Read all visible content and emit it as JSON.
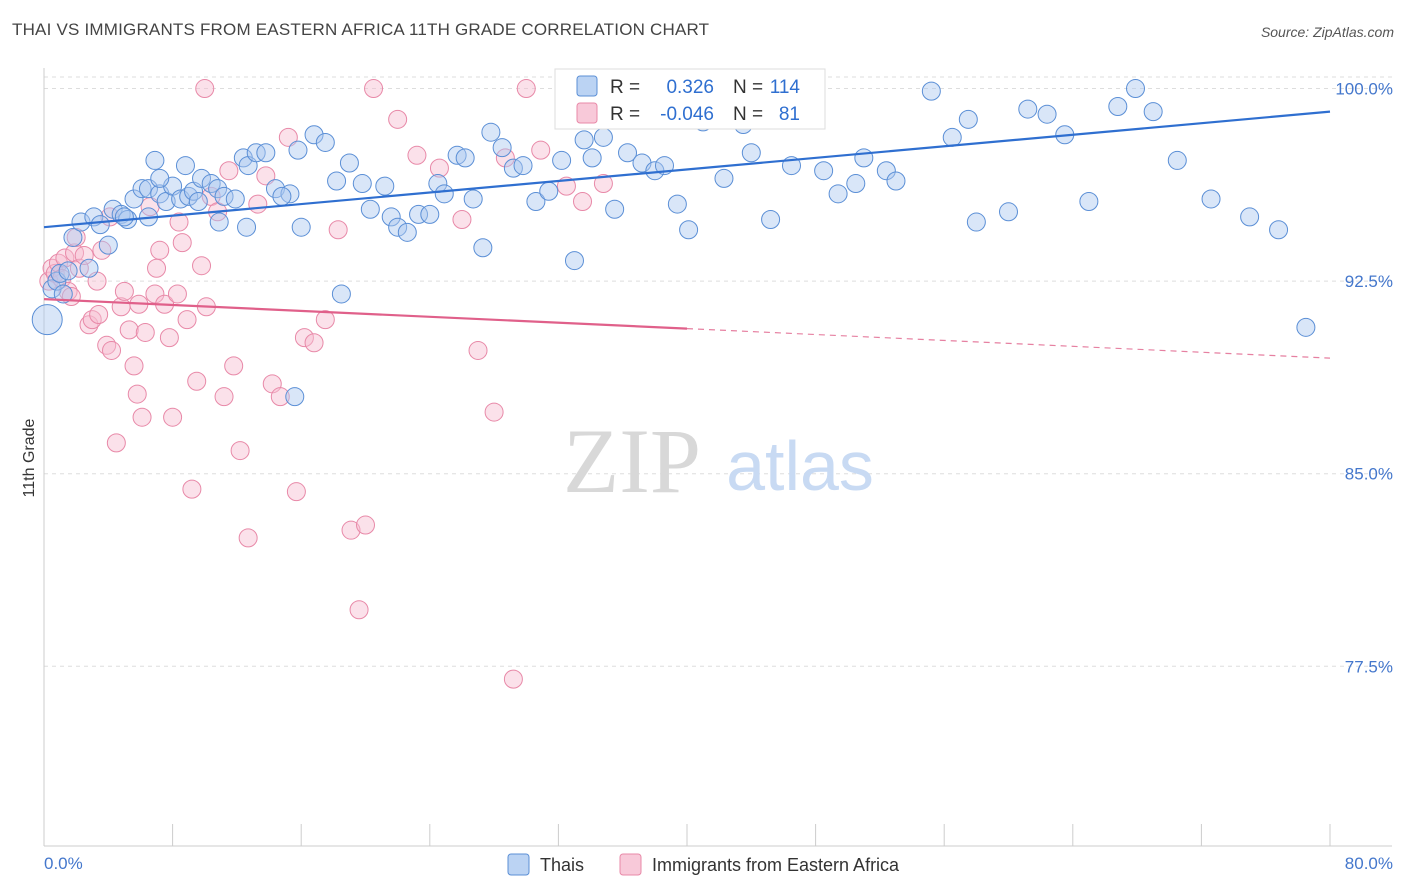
{
  "header": {
    "title": "THAI VS IMMIGRANTS FROM EASTERN AFRICA 11TH GRADE CORRELATION CHART",
    "source": "Source: ZipAtlas.com"
  },
  "watermark": {
    "zip": "ZIP",
    "atlas": "atlas"
  },
  "colors": {
    "blue_fill": "#aac8f0",
    "blue_stroke": "#5b8fd6",
    "blue_line": "#2f6fd0",
    "pink_fill": "#f6bcd0",
    "pink_stroke": "#e889a8",
    "pink_line": "#e0608a",
    "grid": "#dddddd",
    "tick_label": "#4477cc"
  },
  "chart_data": {
    "type": "scatter",
    "title": "THAI VS IMMIGRANTS FROM EASTERN AFRICA 11TH GRADE CORRELATION CHART",
    "xlabel": "",
    "ylabel": "11th Grade",
    "xlim": [
      0,
      80
    ],
    "ylim": [
      70.5,
      100.8
    ],
    "x_tick_labels": [
      "0.0%",
      "80.0%"
    ],
    "y_ticks": [
      77.5,
      85.0,
      92.5,
      100.0
    ],
    "y_tick_labels": [
      "77.5%",
      "85.0%",
      "92.5%",
      "100.0%"
    ],
    "grid": true,
    "legend_position": "top-center",
    "legend": {
      "r_label": "R =",
      "n_label": "N =",
      "rows": [
        {
          "series": "Thais",
          "r": "0.326",
          "n": "114"
        },
        {
          "series": "Immigrants from Eastern Africa",
          "r": "-0.046",
          "n": "81"
        }
      ]
    },
    "series": [
      {
        "name": "Thais",
        "trend": {
          "x": [
            0,
            80
          ],
          "y": [
            94.6,
            99.1
          ],
          "solid_until": 80
        },
        "points": [
          [
            0.2,
            91.0
          ],
          [
            0.5,
            92.2
          ],
          [
            0.8,
            92.5
          ],
          [
            1.0,
            92.8
          ],
          [
            1.2,
            92.0
          ],
          [
            1.5,
            92.9
          ],
          [
            1.8,
            94.2
          ],
          [
            2.3,
            94.8
          ],
          [
            2.8,
            93.0
          ],
          [
            3.1,
            95.0
          ],
          [
            3.5,
            94.7
          ],
          [
            4.3,
            95.3
          ],
          [
            4.8,
            95.1
          ],
          [
            5.2,
            94.9
          ],
          [
            5.6,
            95.7
          ],
          [
            6.1,
            96.1
          ],
          [
            6.5,
            96.1
          ],
          [
            6.9,
            97.2
          ],
          [
            7.2,
            95.9
          ],
          [
            7.6,
            95.6
          ],
          [
            8.0,
            96.2
          ],
          [
            8.5,
            95.7
          ],
          [
            9.0,
            95.8
          ],
          [
            9.3,
            96.0
          ],
          [
            9.8,
            96.5
          ],
          [
            10.4,
            96.3
          ],
          [
            10.8,
            96.1
          ],
          [
            11.2,
            95.8
          ],
          [
            11.9,
            95.7
          ],
          [
            12.4,
            97.3
          ],
          [
            12.7,
            97.0
          ],
          [
            13.2,
            97.5
          ],
          [
            13.8,
            97.5
          ],
          [
            14.4,
            96.1
          ],
          [
            15.3,
            95.9
          ],
          [
            15.8,
            97.6
          ],
          [
            16.0,
            94.6
          ],
          [
            16.8,
            98.2
          ],
          [
            17.5,
            97.9
          ],
          [
            18.2,
            96.4
          ],
          [
            19.0,
            97.1
          ],
          [
            19.8,
            96.3
          ],
          [
            20.3,
            95.3
          ],
          [
            21.2,
            96.2
          ],
          [
            21.6,
            95.0
          ],
          [
            22.0,
            94.6
          ],
          [
            22.6,
            94.4
          ],
          [
            23.3,
            95.1
          ],
          [
            24.0,
            95.1
          ],
          [
            24.5,
            96.3
          ],
          [
            24.9,
            95.9
          ],
          [
            25.7,
            97.4
          ],
          [
            26.2,
            97.3
          ],
          [
            26.7,
            95.7
          ],
          [
            27.3,
            93.8
          ],
          [
            27.8,
            98.3
          ],
          [
            28.5,
            97.7
          ],
          [
            29.2,
            96.9
          ],
          [
            29.8,
            97.0
          ],
          [
            30.6,
            95.6
          ],
          [
            31.4,
            96.0
          ],
          [
            32.2,
            97.2
          ],
          [
            33.0,
            93.3
          ],
          [
            33.6,
            98.0
          ],
          [
            34.1,
            97.3
          ],
          [
            34.8,
            98.1
          ],
          [
            35.5,
            95.3
          ],
          [
            36.3,
            97.5
          ],
          [
            37.2,
            97.1
          ],
          [
            38.0,
            96.8
          ],
          [
            38.6,
            97.0
          ],
          [
            39.4,
            95.5
          ],
          [
            40.1,
            94.5
          ],
          [
            41.0,
            98.7
          ],
          [
            42.3,
            96.5
          ],
          [
            43.5,
            98.6
          ],
          [
            44.0,
            97.5
          ],
          [
            44.8,
            98.9
          ],
          [
            45.2,
            94.9
          ],
          [
            46.5,
            97.0
          ],
          [
            48.0,
            99.6
          ],
          [
            48.5,
            96.8
          ],
          [
            49.4,
            95.9
          ],
          [
            50.5,
            96.3
          ],
          [
            51.0,
            97.3
          ],
          [
            52.4,
            96.8
          ],
          [
            53.0,
            96.4
          ],
          [
            55.2,
            99.9
          ],
          [
            56.5,
            98.1
          ],
          [
            57.5,
            98.8
          ],
          [
            58.0,
            94.8
          ],
          [
            60.0,
            95.2
          ],
          [
            61.2,
            99.2
          ],
          [
            62.4,
            99.0
          ],
          [
            63.5,
            98.2
          ],
          [
            65.0,
            95.6
          ],
          [
            66.8,
            99.3
          ],
          [
            67.9,
            100.0
          ],
          [
            69.0,
            99.1
          ],
          [
            70.5,
            97.2
          ],
          [
            72.6,
            95.7
          ],
          [
            75.0,
            95.0
          ],
          [
            76.8,
            94.5
          ],
          [
            78.5,
            90.7
          ],
          [
            4.0,
            93.9
          ],
          [
            5.0,
            95.0
          ],
          [
            6.5,
            95.0
          ],
          [
            7.2,
            96.5
          ],
          [
            8.8,
            97.0
          ],
          [
            9.6,
            95.6
          ],
          [
            10.9,
            94.8
          ],
          [
            12.6,
            94.6
          ],
          [
            14.8,
            95.8
          ],
          [
            15.6,
            88.0
          ],
          [
            18.5,
            92.0
          ]
        ]
      },
      {
        "name": "Immigrants from Eastern Africa",
        "trend": {
          "x": [
            0,
            80
          ],
          "y": [
            91.8,
            89.5
          ],
          "solid_until": 40
        },
        "points": [
          [
            0.3,
            92.5
          ],
          [
            0.5,
            93.0
          ],
          [
            0.7,
            92.8
          ],
          [
            0.9,
            93.2
          ],
          [
            1.1,
            92.6
          ],
          [
            1.3,
            93.4
          ],
          [
            1.5,
            92.1
          ],
          [
            1.7,
            91.9
          ],
          [
            1.9,
            93.6
          ],
          [
            2.2,
            93.0
          ],
          [
            2.5,
            93.5
          ],
          [
            2.8,
            90.8
          ],
          [
            3.0,
            91.0
          ],
          [
            3.3,
            92.5
          ],
          [
            3.6,
            93.7
          ],
          [
            3.9,
            90.0
          ],
          [
            4.2,
            89.8
          ],
          [
            4.5,
            86.2
          ],
          [
            4.8,
            91.5
          ],
          [
            5.0,
            92.1
          ],
          [
            5.3,
            90.6
          ],
          [
            5.6,
            89.2
          ],
          [
            5.8,
            88.1
          ],
          [
            6.1,
            87.2
          ],
          [
            6.3,
            90.5
          ],
          [
            6.6,
            95.4
          ],
          [
            6.9,
            92.0
          ],
          [
            7.2,
            93.7
          ],
          [
            7.5,
            91.6
          ],
          [
            7.8,
            90.3
          ],
          [
            8.0,
            87.2
          ],
          [
            8.3,
            92.0
          ],
          [
            8.6,
            94.0
          ],
          [
            8.9,
            91.0
          ],
          [
            9.2,
            84.4
          ],
          [
            9.5,
            88.6
          ],
          [
            9.8,
            93.1
          ],
          [
            10.1,
            91.5
          ],
          [
            10.4,
            95.8
          ],
          [
            10.8,
            95.2
          ],
          [
            11.2,
            88.0
          ],
          [
            11.5,
            96.8
          ],
          [
            11.8,
            89.2
          ],
          [
            12.2,
            85.9
          ],
          [
            12.7,
            82.5
          ],
          [
            13.3,
            95.5
          ],
          [
            13.8,
            96.6
          ],
          [
            14.2,
            88.5
          ],
          [
            14.7,
            88.0
          ],
          [
            15.2,
            98.1
          ],
          [
            15.7,
            84.3
          ],
          [
            16.2,
            90.3
          ],
          [
            16.8,
            90.1
          ],
          [
            17.5,
            91.0
          ],
          [
            18.3,
            94.5
          ],
          [
            19.1,
            82.8
          ],
          [
            19.6,
            79.7
          ],
          [
            20.0,
            83.0
          ],
          [
            20.5,
            100.0
          ],
          [
            22.0,
            98.8
          ],
          [
            23.2,
            97.4
          ],
          [
            24.6,
            96.9
          ],
          [
            26.0,
            94.9
          ],
          [
            27.0,
            89.8
          ],
          [
            28.0,
            87.4
          ],
          [
            28.7,
            97.3
          ],
          [
            29.2,
            77.0
          ],
          [
            30.0,
            100.0
          ],
          [
            30.9,
            97.6
          ],
          [
            32.5,
            96.2
          ],
          [
            33.5,
            95.6
          ],
          [
            34.8,
            96.3
          ],
          [
            36.0,
            99.2
          ],
          [
            38.5,
            100.0
          ],
          [
            10.0,
            100.0
          ],
          [
            2.0,
            94.2
          ],
          [
            3.4,
            91.2
          ],
          [
            4.1,
            95.0
          ],
          [
            5.9,
            91.6
          ],
          [
            7.0,
            93.0
          ],
          [
            8.4,
            94.8
          ]
        ]
      }
    ],
    "bottom_legend": [
      "Thais",
      "Immigrants from Eastern Africa"
    ]
  }
}
